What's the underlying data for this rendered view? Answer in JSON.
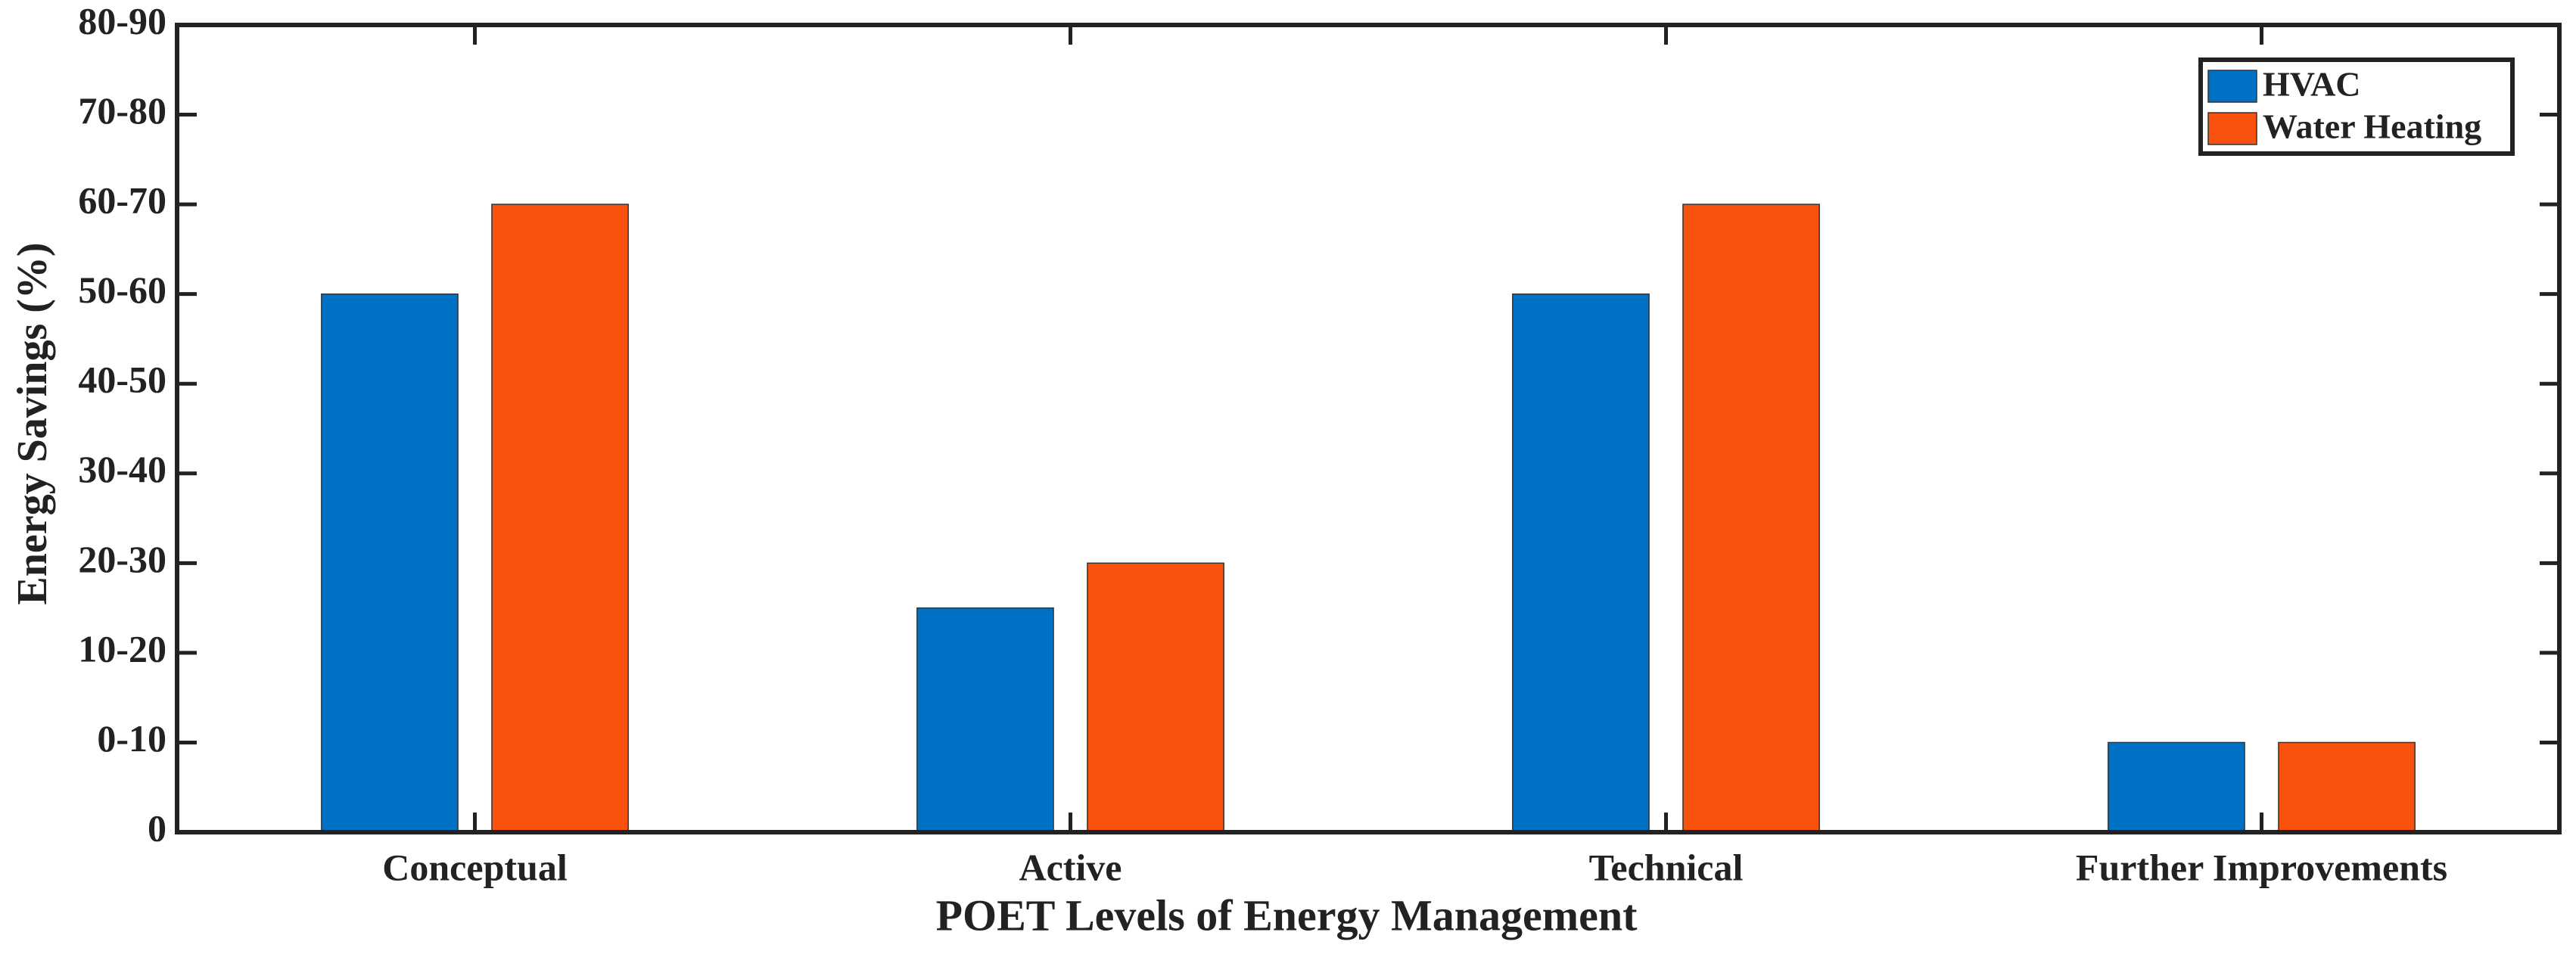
{
  "chart_data": {
    "type": "bar",
    "x_label": "POET Levels of Energy Management",
    "y_label": "Energy Savings (%)",
    "categories": [
      "Conceptual",
      "Active",
      "Technical",
      "Further Improvements"
    ],
    "series": [
      {
        "name": "HVAC",
        "color": "#0072c6",
        "values": [
          60,
          25,
          60,
          10
        ]
      },
      {
        "name": "Water Heating",
        "color": "#f8520e",
        "values": [
          70,
          30,
          70,
          10
        ]
      }
    ],
    "ylim": [
      0,
      90
    ],
    "yticks": [
      0,
      {
        "value": 10,
        "label": "0-10"
      },
      {
        "value": 20,
        "label": "10-20"
      },
      {
        "value": 30,
        "label": "20-30"
      },
      {
        "value": 40,
        "label": "30-40"
      },
      {
        "value": 50,
        "label": "40-50"
      },
      {
        "value": 60,
        "label": "50-60"
      },
      {
        "value": 70,
        "label": "60-70"
      },
      {
        "value": 80,
        "label": "70-80"
      },
      {
        "value": 90,
        "label": "80-90"
      }
    ],
    "grid": false,
    "legend": "upper right"
  }
}
